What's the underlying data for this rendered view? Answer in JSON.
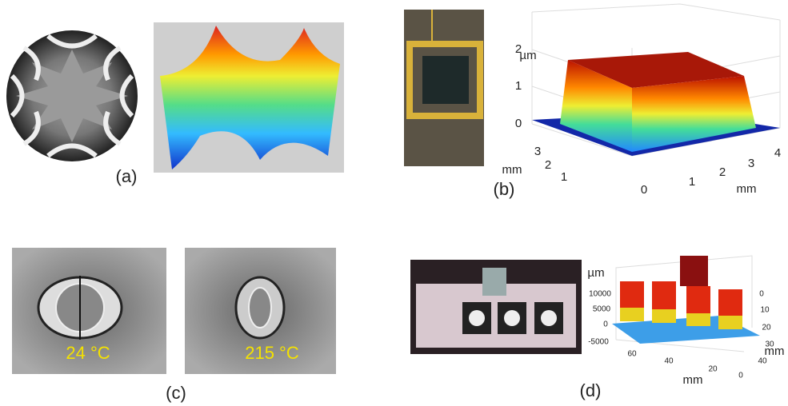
{
  "panels": [
    {
      "label": "(a)"
    },
    {
      "label": "(b)",
      "z_unit": "µm",
      "z_ticks": [
        "2",
        "1",
        "0"
      ],
      "y_label": "mm",
      "y_ticks": [
        "3",
        "2",
        "1"
      ],
      "x_label": "mm",
      "x_ticks": [
        "0",
        "1",
        "2",
        "3",
        "4"
      ]
    },
    {
      "label": "(c)",
      "captions": [
        "24 °C",
        "215 °C"
      ]
    },
    {
      "label": "(d)",
      "z_unit": "µm",
      "z_ticks": [
        "10000",
        "5000",
        "0",
        "-5000"
      ],
      "x_label": "mm",
      "x_ticks": [
        "60",
        "40",
        "20",
        "0"
      ],
      "y_label": "mm",
      "y_ticks": [
        "0",
        "10",
        "20",
        "30",
        "40"
      ]
    }
  ]
}
